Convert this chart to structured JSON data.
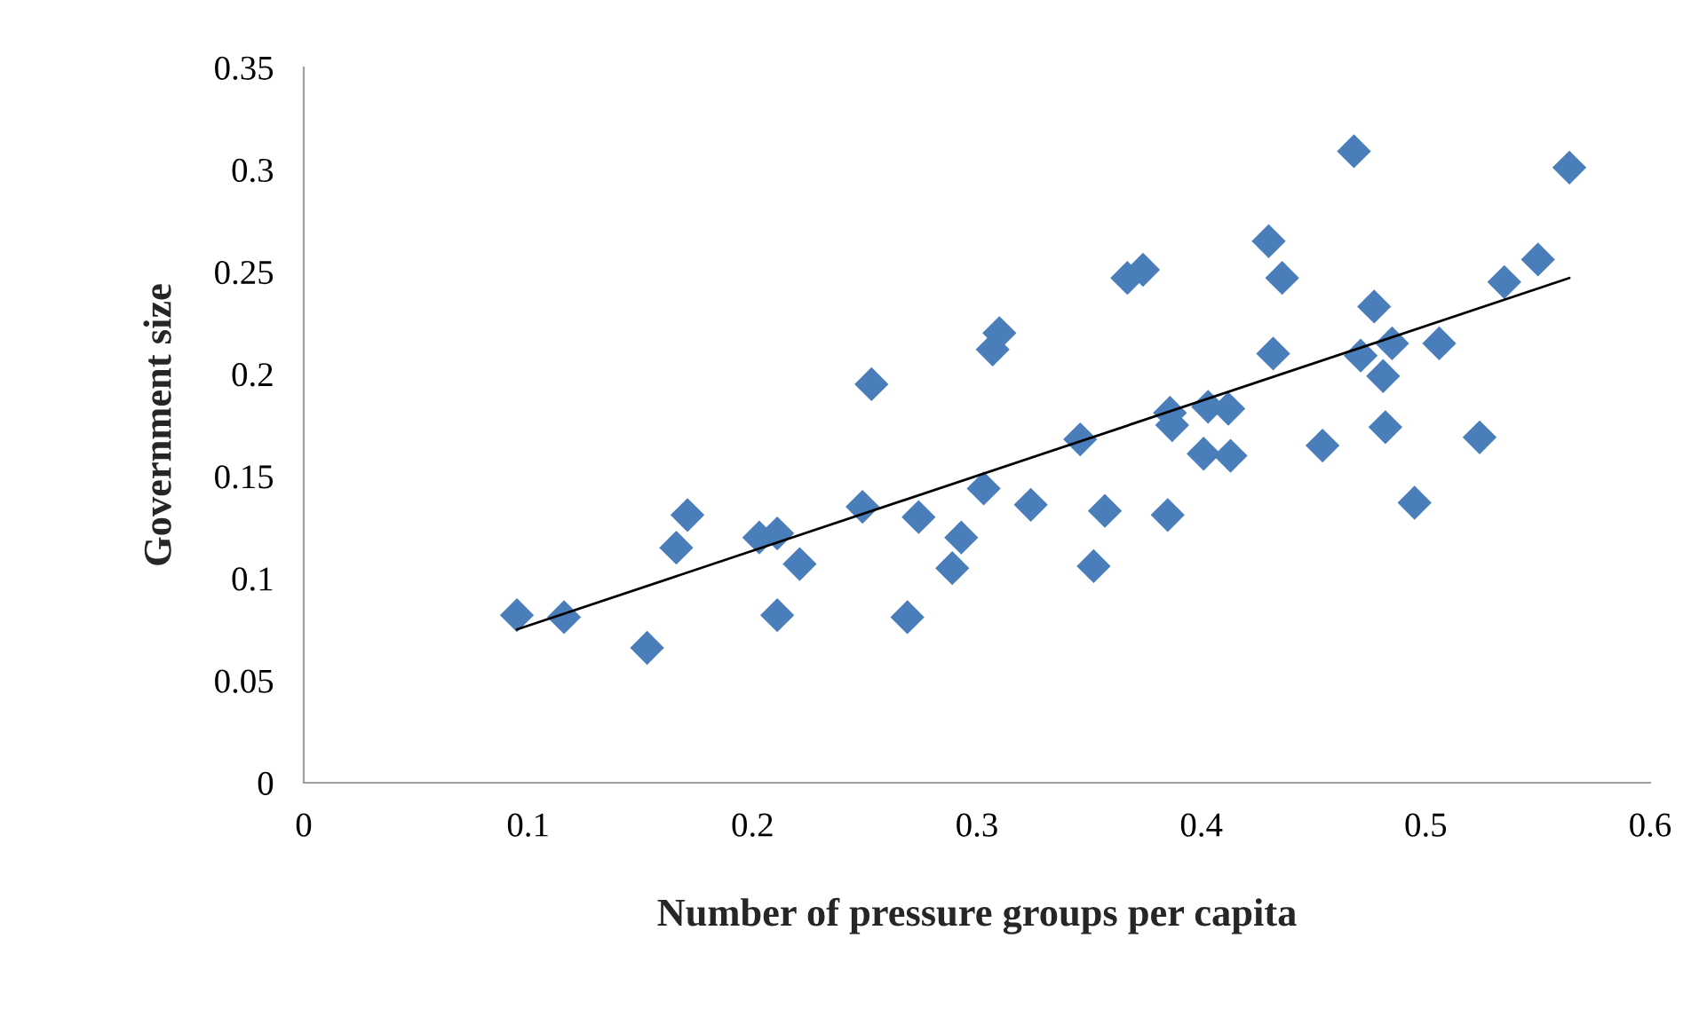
{
  "chart_data": {
    "type": "scatter",
    "xlabel": "Number of pressure groups per capita",
    "ylabel": "Government size",
    "xlim": [
      0,
      0.6
    ],
    "xticks": [
      0,
      0.1,
      0.2,
      0.3,
      0.4,
      0.5,
      0.6
    ],
    "ylim": [
      0,
      0.35
    ],
    "yticks": [
      0,
      0.05,
      0.1,
      0.15,
      0.2,
      0.25,
      0.3,
      0.35
    ],
    "grid": false,
    "legend": false,
    "series": [
      {
        "marker": "diamond",
        "color": "#4a7ebb",
        "x": [
          0.095,
          0.116,
          0.153,
          0.166,
          0.171,
          0.203,
          0.211,
          0.211,
          0.221,
          0.249,
          0.253,
          0.269,
          0.274,
          0.289,
          0.293,
          0.303,
          0.307,
          0.31,
          0.324,
          0.346,
          0.352,
          0.357,
          0.367,
          0.374,
          0.385,
          0.386,
          0.387,
          0.403,
          0.401,
          0.412,
          0.413,
          0.43,
          0.432,
          0.436,
          0.454,
          0.468,
          0.471,
          0.477,
          0.481,
          0.482,
          0.485,
          0.495,
          0.506,
          0.524,
          0.535,
          0.55,
          0.564
        ],
        "values": [
          0.082,
          0.081,
          0.066,
          0.115,
          0.131,
          0.12,
          0.122,
          0.082,
          0.107,
          0.135,
          0.195,
          0.081,
          0.13,
          0.105,
          0.12,
          0.144,
          0.212,
          0.22,
          0.136,
          0.168,
          0.106,
          0.133,
          0.247,
          0.251,
          0.131,
          0.181,
          0.175,
          0.184,
          0.161,
          0.183,
          0.16,
          0.265,
          0.21,
          0.247,
          0.165,
          0.309,
          0.209,
          0.233,
          0.199,
          0.174,
          0.215,
          0.137,
          0.215,
          0.169,
          0.245,
          0.256,
          0.301
        ]
      },
      {
        "type": "line",
        "marker": "none",
        "color": "#000000",
        "x": [
          0.095,
          0.564
        ],
        "values": [
          0.075,
          0.247
        ]
      }
    ]
  }
}
